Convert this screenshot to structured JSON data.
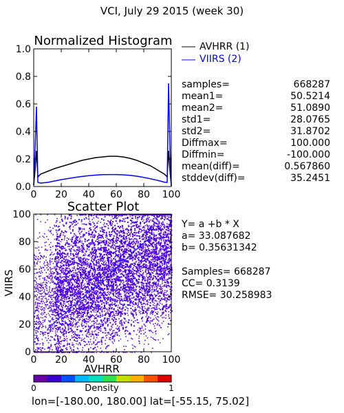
{
  "title": "VCI,  July 29 2015 (week 30)",
  "chart_data": [
    {
      "type": "line",
      "title": "Normalized Histogram",
      "xlim": [
        0,
        100
      ],
      "ylim": [
        0,
        1.0
      ],
      "x_ticks": [
        "0",
        "20",
        "40",
        "60",
        "80",
        "100"
      ],
      "y_ticks": [
        "0.0",
        "0.2",
        "0.4",
        "0.6",
        "0.8",
        "1.0"
      ],
      "series": [
        {
          "name": "AVHRR (1)",
          "color": "#000000",
          "x": [
            0,
            1,
            2,
            3,
            5,
            10,
            15,
            20,
            25,
            30,
            35,
            40,
            45,
            50,
            55,
            60,
            65,
            70,
            75,
            80,
            85,
            90,
            95,
            97,
            98,
            99,
            100
          ],
          "y": [
            0.01,
            0.12,
            0.26,
            0.07,
            0.09,
            0.11,
            0.13,
            0.145,
            0.16,
            0.175,
            0.19,
            0.2,
            0.21,
            0.215,
            0.22,
            0.22,
            0.215,
            0.205,
            0.19,
            0.17,
            0.15,
            0.12,
            0.09,
            0.07,
            0.26,
            0.12,
            0.005
          ]
        },
        {
          "name": "VIIRS (2)",
          "color": "#0000ff",
          "x": [
            0,
            1,
            2,
            3,
            5,
            10,
            15,
            20,
            25,
            30,
            35,
            40,
            45,
            50,
            55,
            60,
            65,
            70,
            75,
            80,
            85,
            90,
            95,
            97,
            98,
            99,
            100
          ],
          "y": [
            0.01,
            0.28,
            0.58,
            0.03,
            0.025,
            0.03,
            0.04,
            0.05,
            0.058,
            0.066,
            0.073,
            0.079,
            0.083,
            0.086,
            0.087,
            0.087,
            0.085,
            0.081,
            0.075,
            0.066,
            0.056,
            0.045,
            0.032,
            0.03,
            0.75,
            0.3,
            0.005
          ]
        }
      ]
    },
    {
      "type": "scatter",
      "title": "Scatter Plot",
      "xlabel": "AVHRR",
      "ylabel": "VIIRS",
      "xlim": [
        0,
        100
      ],
      "ylim": [
        0,
        100
      ],
      "x_ticks": [
        "0",
        "20",
        "40",
        "60",
        "80",
        "100"
      ],
      "y_ticks": [
        "0",
        "20",
        "40",
        "60",
        "80",
        "100"
      ],
      "regression": {
        "a": 33.087682,
        "b": 0.35631342
      },
      "colorbar": {
        "label": "Density",
        "min_label": "0",
        "max_label": "1",
        "colors": [
          "#6a00a8",
          "#3a00d0",
          "#0050ff",
          "#00b8ff",
          "#00e0c0",
          "#30e050",
          "#c0e000",
          "#ffb000",
          "#ff5000",
          "#e00000"
        ]
      },
      "scatter_color": "#6010e0",
      "fit_color": "#2020ff"
    }
  ],
  "stats": [
    {
      "label": "samples=",
      "value": "668287"
    },
    {
      "label": "mean1=",
      "value": "50.5214"
    },
    {
      "label": "mean2=",
      "value": "51.0890"
    },
    {
      "label": "std1=",
      "value": "28.0765"
    },
    {
      "label": "std2=",
      "value": "31.8702"
    },
    {
      "label": "Diffmax=",
      "value": "100.000"
    },
    {
      "label": "Diffmin=",
      "value": "-100.000"
    },
    {
      "label": "mean(diff)=",
      "value": "0.567860"
    },
    {
      "label": "stddev(diff)=",
      "value": "35.2451"
    }
  ],
  "fit_text": {
    "equation": "Y= a +b * X",
    "a": "a= 33.087682",
    "b": "b= 0.35631342",
    "samples": "Samples= 668287",
    "cc": "CC=  0.3139",
    "rmse": "RMSE= 30.258983"
  },
  "bounds_text": "lon=[-180.00, 180.00] lat=[-55.15, 75.02]"
}
